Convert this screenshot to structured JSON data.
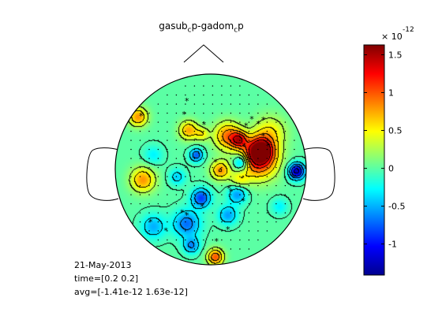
{
  "chart_data": {
    "type": "heatmap",
    "subtype": "eeg-topographic-scalp-map",
    "title_parts": {
      "a": "gasub",
      "a_sub": "c",
      "b": "p-gadom",
      "b_sub": "c",
      "c": "p"
    },
    "title": "gasub_cp-gadom_cp",
    "colorbar": {
      "colormap": "jet",
      "range": [
        -1.41,
        1.63
      ],
      "ticks": [
        -1,
        -0.5,
        0,
        0.5,
        1,
        1.5
      ],
      "tick_labels": [
        "-1",
        "-0.5",
        "0",
        "0.5",
        "1",
        "1.5"
      ],
      "exponent_prefix": "× 10",
      "exponent": "-12"
    },
    "blobs": [
      {
        "x": 0.5,
        "y": 0.1,
        "v": 1.15,
        "s": 0.14
      },
      {
        "x": 0.52,
        "y": 0.2,
        "v": 1.35,
        "s": 0.09
      },
      {
        "x": 0.18,
        "y": 0.35,
        "v": 0.9,
        "s": 0.1
      },
      {
        "x": 0.3,
        "y": 0.31,
        "v": 0.95,
        "s": 0.06
      },
      {
        "x": 0.1,
        "y": -0.01,
        "v": 0.8,
        "s": 0.07
      },
      {
        "x": 0.3,
        "y": -0.11,
        "v": 0.4,
        "s": 0.07
      },
      {
        "x": 0.62,
        "y": 0.39,
        "v": 0.5,
        "s": 0.12
      },
      {
        "x": -0.23,
        "y": 0.41,
        "v": 0.75,
        "s": 0.07
      },
      {
        "x": -0.09,
        "y": 0.37,
        "v": 0.45,
        "s": 0.05
      },
      {
        "x": -0.76,
        "y": 0.55,
        "v": 0.8,
        "s": 0.07
      },
      {
        "x": -0.71,
        "y": -0.11,
        "v": 0.8,
        "s": 0.09
      },
      {
        "x": 0.9,
        "y": -0.02,
        "v": -1.25,
        "s": 0.06
      },
      {
        "x": 0.32,
        "y": 0.07,
        "v": -0.8,
        "s": 0.06
      },
      {
        "x": 0.28,
        "y": -0.26,
        "v": -0.6,
        "s": 0.07
      },
      {
        "x": -0.1,
        "y": -0.3,
        "v": -0.85,
        "s": 0.07
      },
      {
        "x": 0.18,
        "y": -0.48,
        "v": -0.55,
        "s": 0.07
      },
      {
        "x": -0.25,
        "y": -0.57,
        "v": -0.7,
        "s": 0.1
      },
      {
        "x": -0.15,
        "y": 0.15,
        "v": -0.75,
        "s": 0.05
      },
      {
        "x": -0.35,
        "y": -0.08,
        "v": -0.4,
        "s": 0.06
      },
      {
        "x": -0.6,
        "y": -0.6,
        "v": -0.5,
        "s": 0.09
      },
      {
        "x": -0.2,
        "y": -0.8,
        "v": -0.6,
        "s": 0.06
      },
      {
        "x": 0.05,
        "y": -0.92,
        "v": 1.0,
        "s": 0.06
      },
      {
        "x": -0.6,
        "y": 0.15,
        "v": -0.3,
        "s": 0.07
      },
      {
        "x": 0.72,
        "y": -0.39,
        "v": -0.3,
        "s": 0.06
      }
    ],
    "stars": [
      [
        -0.25,
        0.72
      ],
      [
        -0.28,
        0.58
      ],
      [
        -0.07,
        0.47
      ],
      [
        -0.73,
        0.56
      ],
      [
        0.37,
        0.46
      ],
      [
        0.43,
        0.53
      ],
      [
        0.55,
        0.52
      ],
      [
        0.5,
        0.48
      ],
      [
        0.6,
        0.25
      ],
      [
        0.55,
        0.35
      ],
      [
        0.05,
        0.08
      ],
      [
        0.19,
        -0.2
      ],
      [
        0.21,
        -0.23
      ],
      [
        -0.63,
        -0.55
      ],
      [
        -0.09,
        -0.39
      ],
      [
        -0.3,
        -0.45
      ],
      [
        0.06,
        -0.75
      ],
      [
        -0.25,
        -0.48
      ],
      [
        -0.47,
        -0.64
      ],
      [
        0.18,
        -0.63
      ],
      [
        0.34,
        -0.33
      ],
      [
        0.35,
        0.25
      ]
    ]
  },
  "info": {
    "date": "21-May-2013",
    "time": "time=[0.2 0.2]",
    "avg": "avg=[-1.41e-12 1.63e-12]"
  }
}
